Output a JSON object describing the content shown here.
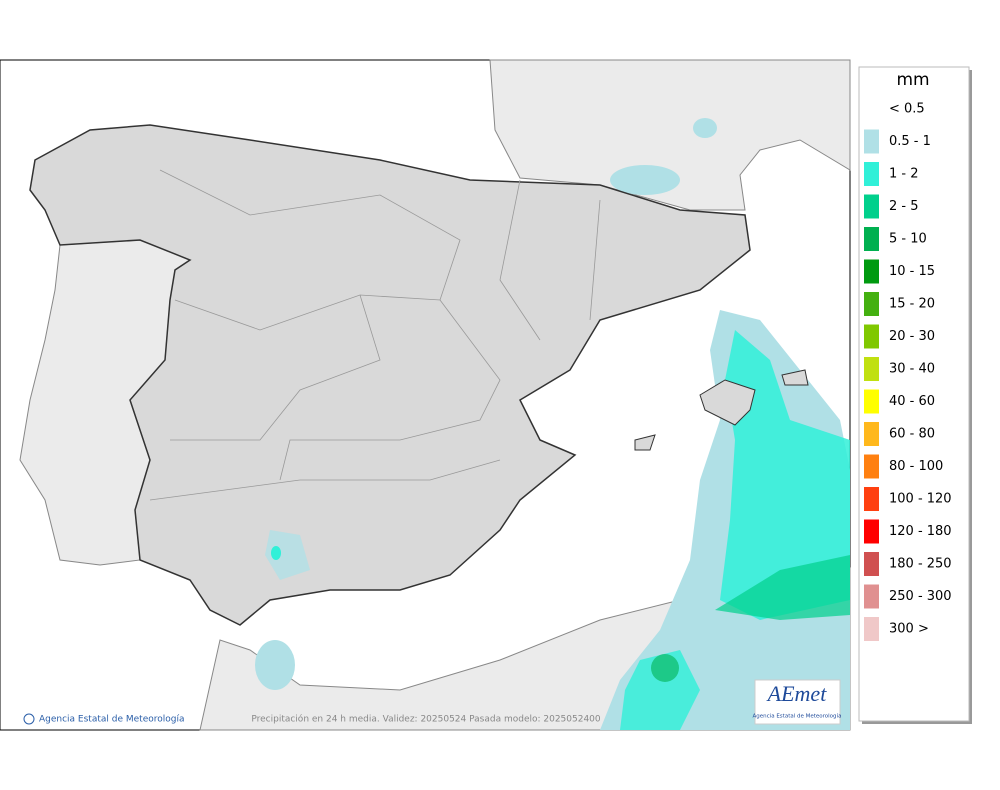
{
  "legend": {
    "title": "mm",
    "items": [
      {
        "label": "< 0.5"
      },
      {
        "label": "0.5 - 1",
        "color": "#b0e0e6"
      },
      {
        "label": "1 - 2",
        "color": "#30f0d8"
      },
      {
        "label": "2 - 5",
        "color": "#00d08c"
      },
      {
        "label": "5 - 10",
        "color": "#00b050"
      },
      {
        "label": "10 - 15",
        "color": "#009a10"
      },
      {
        "label": "15 - 20",
        "color": "#44b010"
      },
      {
        "label": "20 - 30",
        "color": "#80c800"
      },
      {
        "label": "30 - 40",
        "color": "#c0e010"
      },
      {
        "label": "40 - 60",
        "color": "#ffff00"
      },
      {
        "label": "60 - 80",
        "color": "#ffb81c"
      },
      {
        "label": "80 - 100",
        "color": "#ff8010"
      },
      {
        "label": "100 - 120",
        "color": "#ff4010"
      },
      {
        "label": "120 - 180",
        "color": "#ff0000"
      },
      {
        "label": "180 - 250",
        "color": "#d05050"
      },
      {
        "label": "250 - 300",
        "color": "#e09090"
      },
      {
        "label": "300 >",
        "color": "#f0c8c8"
      }
    ]
  },
  "footer": {
    "credit": "Agencia Estatal de Meteorología",
    "caption": "Precipitación en 24 h media. Validez: 20250524 Pasada modelo: 2025052400"
  },
  "logo": {
    "name": "AEmet",
    "subtitle": "Agencia Estatal de Meteorología"
  }
}
